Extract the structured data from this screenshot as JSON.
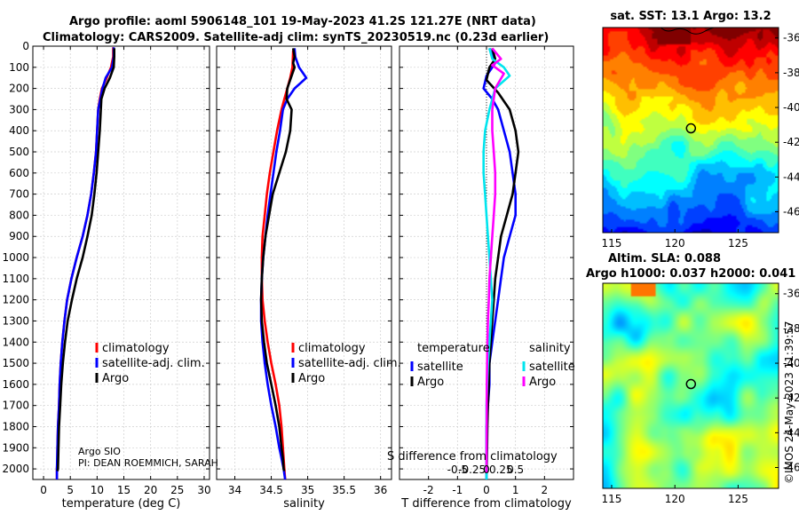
{
  "figure": {
    "title_line1": "Argo profile: aoml 5906148_101 19-May-2023 41.2S 121.27E (NRT data)",
    "title_line2": "Climatology: CARS2009. Satellite-adj clim: synTS_20230519.nc (0.23d earlier)",
    "credits_line1": "Argo SIO",
    "credits_line2": "PI: DEAN ROEMMICH, SARAH",
    "stamp": "©IMOS 24-May-2023 11:39:57",
    "colors": {
      "climatology": "#ff0000",
      "satellite": "#0000ff",
      "argo": "#000000",
      "sat_salinity_diff": "#00e5ee",
      "argo_salinity_diff": "#ff00ff"
    }
  },
  "chart_data": [
    {
      "id": "temperature",
      "type": "line",
      "xlabel": "temperature (deg C)",
      "ylabel": "",
      "xlim": [
        -2,
        31
      ],
      "ylim": [
        2050,
        0
      ],
      "xticks": [
        "0",
        "5",
        "10",
        "15",
        "20",
        "25",
        "30"
      ],
      "xtick_values": [
        0,
        5,
        10,
        15,
        20,
        25,
        30
      ],
      "yticks": [
        "0",
        "100",
        "200",
        "300",
        "400",
        "500",
        "600",
        "700",
        "800",
        "900",
        "1000",
        "1100",
        "1200",
        "1300",
        "1400",
        "1500",
        "1600",
        "1700",
        "1800",
        "1900",
        "2000"
      ],
      "ytick_values": [
        0,
        100,
        200,
        300,
        400,
        500,
        600,
        700,
        800,
        900,
        1000,
        1100,
        1200,
        1300,
        1400,
        1500,
        1600,
        1700,
        1800,
        1900,
        2000
      ],
      "legend": [
        "climatology",
        "satellite-adj. clim.",
        "Argo"
      ],
      "series": [
        {
          "name": "climatology",
          "color": "#ff0000",
          "x": [
            13.0,
            13.0,
            12.6,
            11.8,
            10.9,
            10.5,
            10.2,
            10.0,
            9.8,
            9.4,
            8.9,
            8.2,
            7.3,
            6.2,
            5.2,
            4.4,
            3.9,
            3.5,
            3.2,
            3.0,
            2.9,
            2.7,
            2.6,
            2.6,
            2.5,
            2.5
          ],
          "y": [
            5,
            50,
            100,
            150,
            200,
            250,
            300,
            400,
            500,
            600,
            700,
            800,
            900,
            1000,
            1100,
            1200,
            1300,
            1400,
            1500,
            1600,
            1700,
            1800,
            1900,
            1950,
            2000,
            2050
          ]
        },
        {
          "name": "satellite-adj. clim.",
          "color": "#0000ff",
          "x": [
            13.1,
            13.1,
            12.8,
            11.6,
            11.0,
            10.6,
            10.2,
            10.0,
            9.8,
            9.4,
            8.9,
            8.2,
            7.3,
            6.2,
            5.2,
            4.4,
            3.9,
            3.5,
            3.2,
            3.0,
            2.9,
            2.7,
            2.6,
            2.5,
            2.5
          ],
          "y": [
            5,
            50,
            100,
            150,
            200,
            250,
            300,
            400,
            500,
            600,
            700,
            800,
            900,
            1000,
            1100,
            1200,
            1300,
            1400,
            1500,
            1600,
            1700,
            1800,
            1900,
            2000,
            2050
          ]
        },
        {
          "name": "Argo",
          "color": "#000000",
          "x": [
            13.2,
            13.2,
            13.1,
            12.4,
            11.4,
            10.8,
            10.7,
            10.5,
            10.2,
            9.9,
            9.5,
            9.0,
            8.2,
            7.3,
            6.2,
            5.3,
            4.5,
            4.0,
            3.6,
            3.3,
            3.1,
            2.9,
            2.8,
            2.7,
            2.6
          ],
          "y": [
            10,
            50,
            100,
            150,
            200,
            250,
            300,
            400,
            500,
            600,
            700,
            800,
            900,
            1000,
            1100,
            1200,
            1300,
            1400,
            1500,
            1600,
            1700,
            1800,
            1900,
            2000,
            2010
          ]
        }
      ]
    },
    {
      "id": "salinity",
      "type": "line",
      "xlabel": "salinity",
      "ylabel": "",
      "xlim": [
        33.75,
        36.15
      ],
      "ylim": [
        2050,
        0
      ],
      "xticks": [
        "34",
        "34.5",
        "35",
        "35.5",
        "36"
      ],
      "xtick_values": [
        34,
        34.5,
        35,
        35.5,
        36
      ],
      "legend": [
        "climatology",
        "satellite-adj. clim.",
        "Argo"
      ],
      "series": [
        {
          "name": "climatology",
          "color": "#ff0000",
          "x": [
            34.8,
            34.79,
            34.76,
            34.72,
            34.68,
            34.64,
            34.58,
            34.53,
            34.48,
            34.44,
            34.41,
            34.38,
            34.37,
            34.37,
            34.38,
            34.41,
            34.45,
            34.5,
            34.56,
            34.61,
            34.64,
            34.66,
            34.67,
            34.68,
            34.69
          ],
          "y": [
            20,
            100,
            150,
            200,
            250,
            300,
            400,
            500,
            600,
            700,
            800,
            900,
            1000,
            1100,
            1200,
            1300,
            1400,
            1500,
            1600,
            1700,
            1800,
            1900,
            1950,
            2000,
            2050
          ]
        },
        {
          "name": "satellite-adj. clim.",
          "color": "#0000ff",
          "x": [
            34.82,
            34.83,
            34.88,
            34.94,
            34.98,
            34.82,
            34.72,
            34.66,
            34.62,
            34.57,
            34.53,
            34.49,
            34.45,
            34.42,
            34.39,
            34.37,
            34.36,
            34.36,
            34.38,
            34.41,
            34.45,
            34.5,
            34.56,
            34.61,
            34.64,
            34.67,
            34.68,
            34.69
          ],
          "y": [
            10,
            50,
            100,
            130,
            150,
            200,
            250,
            300,
            400,
            500,
            600,
            700,
            800,
            900,
            1000,
            1100,
            1200,
            1300,
            1400,
            1500,
            1600,
            1700,
            1800,
            1900,
            1950,
            2000,
            2025,
            2050
          ]
        },
        {
          "name": "Argo",
          "color": "#000000",
          "x": [
            34.8,
            34.82,
            34.8,
            34.82,
            34.77,
            34.72,
            34.71,
            34.78,
            34.76,
            34.7,
            34.61,
            34.52,
            34.47,
            34.42,
            34.39,
            34.37,
            34.36,
            34.37,
            34.4,
            34.44,
            34.5,
            34.56,
            34.61,
            34.64,
            34.66,
            34.67,
            34.68
          ],
          "y": [
            10,
            50,
            80,
            100,
            150,
            200,
            250,
            300,
            400,
            500,
            600,
            700,
            800,
            900,
            1000,
            1100,
            1200,
            1300,
            1400,
            1500,
            1600,
            1700,
            1800,
            1900,
            1950,
            2000,
            2010
          ]
        }
      ]
    },
    {
      "id": "difference",
      "type": "line",
      "xlabel": "T difference from climatology",
      "ylabel": "",
      "xlim": [
        -3,
        3
      ],
      "ylim": [
        2050,
        0
      ],
      "xticks": [
        "-2",
        "-1",
        "0",
        "1",
        "2"
      ],
      "xtick_values": [
        -2,
        -1,
        0,
        1,
        2
      ],
      "top_axis_label": "S difference from climatology",
      "top_xticks": [
        "-0.5",
        "-0.25",
        "0",
        "0.25",
        "0.5"
      ],
      "top_xtick_values": [
        -0.5,
        -0.25,
        0,
        0.25,
        0.5
      ],
      "legend_headers": [
        "temperature",
        "salinity"
      ],
      "legend": [
        "satellite",
        "Argo",
        "satellite",
        "Argo"
      ],
      "series": [
        {
          "name": "temperature satellite",
          "color": "#0000ff",
          "x": [
            0.1,
            0.3,
            0.0,
            -0.1,
            0.2,
            0.4,
            0.6,
            0.8,
            0.9,
            1.0,
            1.0,
            0.8,
            0.6,
            0.5,
            0.4,
            0.3,
            0.2,
            0.1,
            0.1,
            0.05,
            0.0,
            0.0,
            0.0,
            0.0
          ],
          "y": [
            10,
            80,
            140,
            200,
            250,
            300,
            400,
            500,
            600,
            700,
            800,
            900,
            1000,
            1100,
            1200,
            1300,
            1400,
            1500,
            1600,
            1700,
            1800,
            1900,
            2000,
            2050
          ]
        },
        {
          "name": "temperature Argo",
          "color": "#000000",
          "x": [
            0.2,
            0.3,
            0.1,
            0.0,
            0.4,
            0.8,
            1.0,
            1.1,
            1.0,
            0.9,
            0.7,
            0.5,
            0.4,
            0.3,
            0.25,
            0.2,
            0.15,
            0.1,
            0.08,
            0.05,
            0.03,
            0.02,
            0.01,
            0.0
          ],
          "y": [
            10,
            60,
            100,
            160,
            220,
            300,
            400,
            500,
            600,
            700,
            800,
            900,
            1000,
            1100,
            1200,
            1300,
            1400,
            1500,
            1600,
            1700,
            1800,
            1900,
            2000,
            2020
          ]
        },
        {
          "name": "salinity satellite",
          "color": "#00e5ee",
          "x": [
            0.1,
            0.2,
            0.6,
            0.8,
            0.3,
            0.1,
            -0.05,
            -0.1,
            -0.1,
            -0.05,
            0.0,
            0.05,
            0.1,
            0.15,
            0.2,
            0.15,
            0.1,
            0.05,
            0.02,
            0.0,
            0.0,
            0.0,
            0.0
          ],
          "y": [
            10,
            60,
            100,
            140,
            200,
            300,
            400,
            500,
            600,
            700,
            800,
            900,
            1000,
            1100,
            1200,
            1300,
            1400,
            1500,
            1600,
            1700,
            1800,
            1900,
            2050
          ]
        },
        {
          "name": "salinity Argo",
          "color": "#ff00ff",
          "x": [
            0.2,
            0.5,
            0.2,
            0.6,
            0.3,
            0.2,
            0.2,
            0.25,
            0.3,
            0.3,
            0.25,
            0.2,
            0.15,
            0.1,
            0.08,
            0.05,
            0.03,
            0.02,
            0.01,
            0.0
          ],
          "y": [
            10,
            60,
            90,
            130,
            200,
            300,
            400,
            500,
            600,
            700,
            800,
            900,
            1000,
            1100,
            1200,
            1300,
            1400,
            1500,
            1600,
            2020
          ]
        }
      ]
    },
    {
      "id": "sst_map",
      "type": "heatmap",
      "title": "sat. SST: 13.1 Argo: 13.2",
      "xticks": [
        "115",
        "120",
        "125"
      ],
      "xtick_values": [
        115,
        120,
        125
      ],
      "yticks": [
        "-36",
        "-38",
        "-40",
        "-42",
        "-44",
        "-46"
      ],
      "ytick_values": [
        -36,
        -38,
        -40,
        -42,
        -44,
        -46
      ],
      "xlim": [
        114.3,
        128.2
      ],
      "ylim": [
        -47.2,
        -35.4
      ],
      "marker": {
        "lon": 121.27,
        "lat": -41.2
      }
    },
    {
      "id": "sla_map",
      "type": "heatmap",
      "title": "Altim. SLA: 0.088",
      "subtitle": "Argo h1000: 0.037 h2000: 0.041",
      "xticks": [
        "115",
        "120",
        "125"
      ],
      "xtick_values": [
        115,
        120,
        125
      ],
      "yticks": [
        "-36",
        "-38",
        "-40",
        "-42",
        "-44",
        "-46"
      ],
      "ytick_values": [
        -36,
        -38,
        -40,
        -42,
        -44,
        -46
      ],
      "xlim": [
        114.3,
        128.2
      ],
      "ylim": [
        -47.2,
        -35.4
      ],
      "marker": {
        "lon": 121.27,
        "lat": -41.2
      }
    }
  ]
}
